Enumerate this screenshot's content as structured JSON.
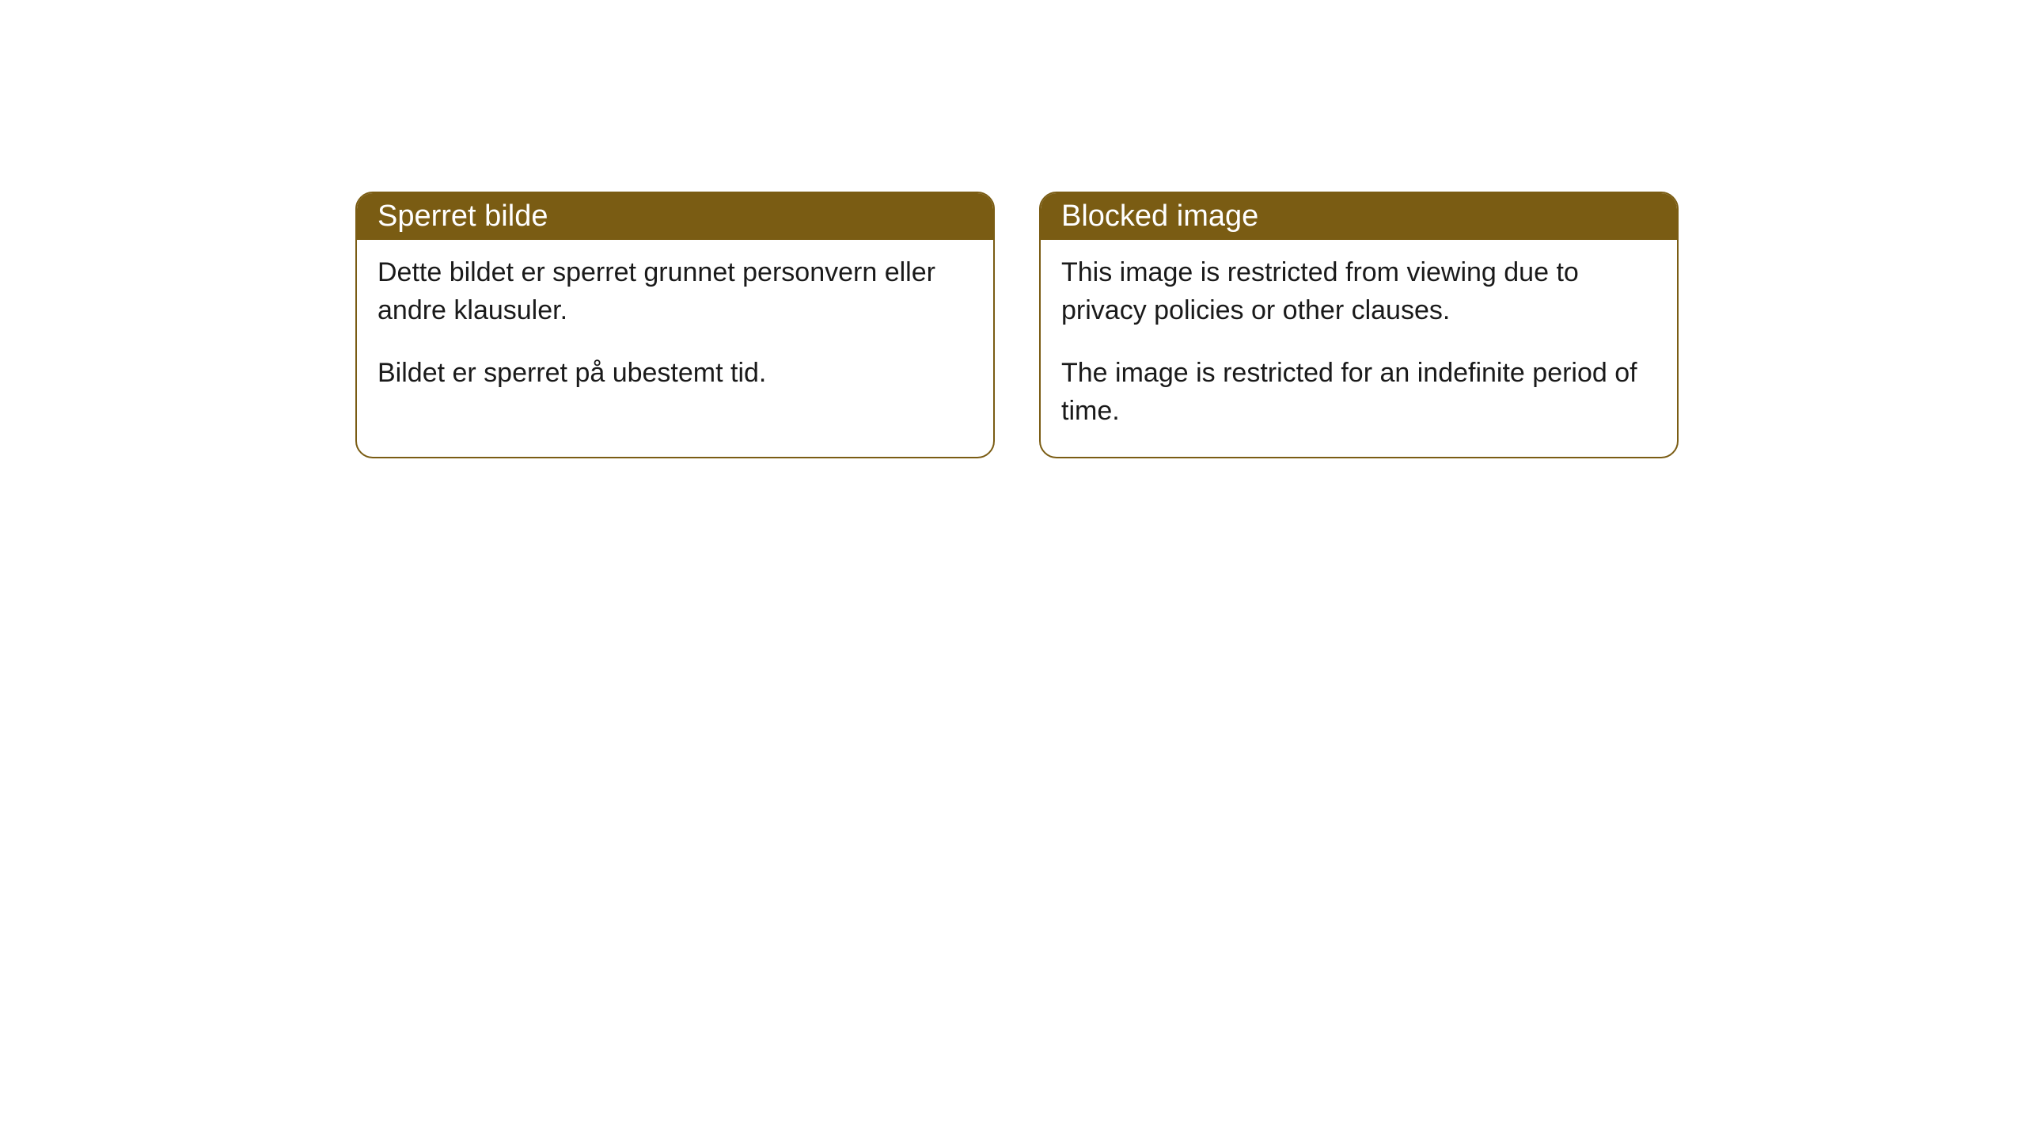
{
  "cards": [
    {
      "title": "Sperret bilde",
      "paragraph1": "Dette bildet er sperret grunnet personvern eller andre klausuler.",
      "paragraph2": "Bildet er sperret på ubestemt tid."
    },
    {
      "title": "Blocked image",
      "paragraph1": "This image is restricted from viewing due to privacy policies or other clauses.",
      "paragraph2": "The image is restricted for an indefinite period of time."
    }
  ],
  "style": {
    "header_bg_color": "#7a5c13",
    "header_text_color": "#ffffff",
    "border_color": "#7a5c13",
    "body_bg_color": "#ffffff",
    "body_text_color": "#1a1a1a",
    "border_radius": 22,
    "header_fontsize": 38,
    "body_fontsize": 34
  }
}
